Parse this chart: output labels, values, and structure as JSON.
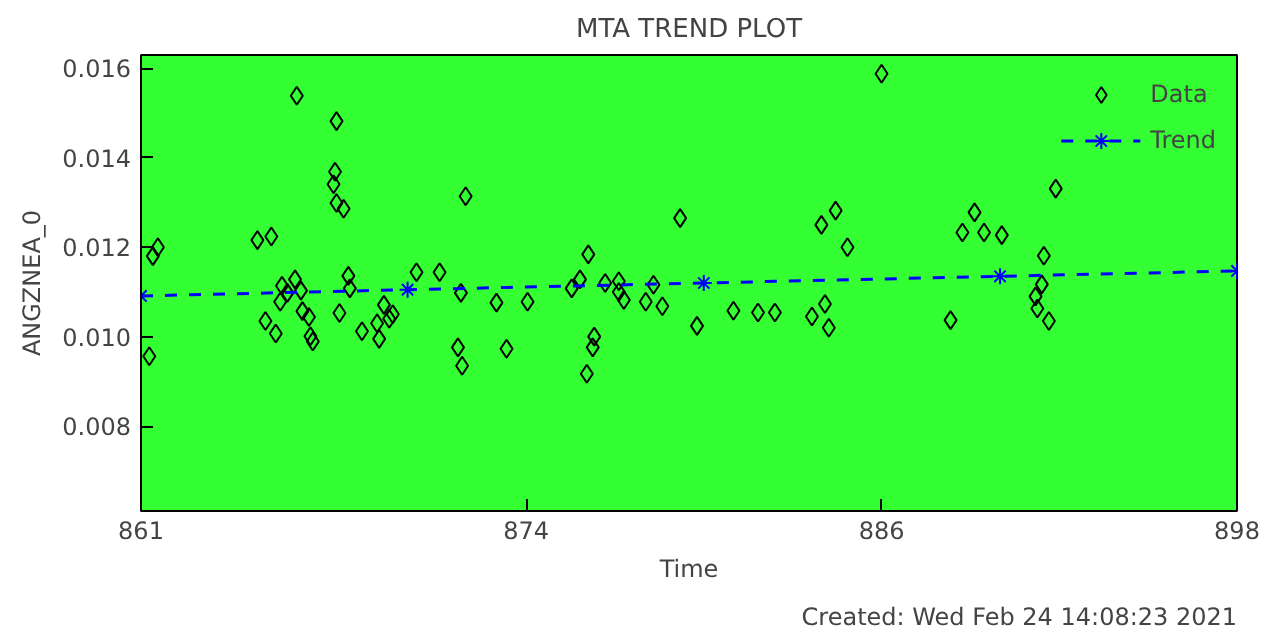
{
  "chart_data": {
    "type": "scatter",
    "title": "MTA TREND PLOT",
    "xlabel": "Time",
    "ylabel": "ANGZNEA_0",
    "annotations": [
      "Created: Wed Feb 24 14:08:23 2021"
    ],
    "xlim": [
      861,
      898
    ],
    "xticks": [
      861,
      874,
      886,
      898
    ],
    "ylim": [
      0.0061,
      0.0163
    ],
    "yticks": [
      {
        "value": 0.008,
        "label": "0.008"
      },
      {
        "value": 0.01,
        "label": "0.010"
      },
      {
        "value": 0.012,
        "label": "0.012"
      },
      {
        "value": 0.014,
        "label": "0.014"
      },
      {
        "value": 0.016,
        "label": "0.016"
      }
    ],
    "grid": false,
    "legend": "top right",
    "series": [
      {
        "name": "Data",
        "marker": "diamond",
        "color": "#000000",
        "x": [
          861.28,
          861.4,
          861.57,
          864.93,
          865.4,
          865.2,
          865.55,
          865.7,
          865.76,
          865.94,
          866.2,
          866.26,
          866.4,
          866.45,
          866.67,
          866.72,
          866.8,
          867.6,
          867.55,
          867.5,
          867.6,
          867.84,
          867.7,
          868.0,
          868.05,
          868.46,
          868.97,
          869.04,
          869.2,
          869.38,
          869.5,
          870.3,
          871.08,
          871.8,
          871.96,
          871.7,
          871.84,
          873.0,
          873.34,
          874.05,
          875.54,
          875.82,
          876.1,
          876.3,
          876.25,
          876.05,
          876.67,
          877.13,
          877.13,
          877.3,
          878.04,
          878.3,
          878.6,
          879.2,
          879.77,
          881.0,
          881.83,
          882.4,
          883.65,
          883.97,
          884.45,
          884.85,
          884.09,
          884.22,
          886.0,
          891.88,
          889.14,
          888.73,
          889.46,
          890.06,
          891.48,
          891.41,
          891.2,
          891.26,
          891.65,
          888.33
        ],
        "values": [
          0.00956,
          0.0118,
          0.012,
          0.01216,
          0.01224,
          0.01035,
          0.01007,
          0.01078,
          0.01114,
          0.01098,
          0.01128,
          0.01539,
          0.01103,
          0.01057,
          0.01044,
          0.01001,
          0.00989,
          0.01482,
          0.01369,
          0.01341,
          0.01299,
          0.01286,
          0.01053,
          0.01136,
          0.01108,
          0.01012,
          0.0103,
          0.00995,
          0.01071,
          0.0104,
          0.0105,
          0.01144,
          0.01144,
          0.01098,
          0.01314,
          0.00976,
          0.00935,
          0.01076,
          0.00973,
          0.01078,
          0.01108,
          0.01128,
          0.01184,
          0.01,
          0.00976,
          0.00917,
          0.0112,
          0.01124,
          0.011,
          0.01082,
          0.01078,
          0.01116,
          0.01068,
          0.01265,
          0.01024,
          0.01058,
          0.01054,
          0.01054,
          0.01045,
          0.0125,
          0.01282,
          0.012,
          0.01073,
          0.0102,
          0.01588,
          0.01331,
          0.01278,
          0.01233,
          0.01233,
          0.01227,
          0.01181,
          0.01117,
          0.0109,
          0.01063,
          0.01035,
          0.01037
        ]
      },
      {
        "name": "Trend",
        "type": "line",
        "marker": "cross",
        "line_style": "dashed",
        "color": "#0000ff",
        "x": [
          861,
          870,
          880,
          890,
          898
        ],
        "values": [
          0.01091,
          0.01105,
          0.0112,
          0.01135,
          0.01147
        ]
      }
    ]
  }
}
